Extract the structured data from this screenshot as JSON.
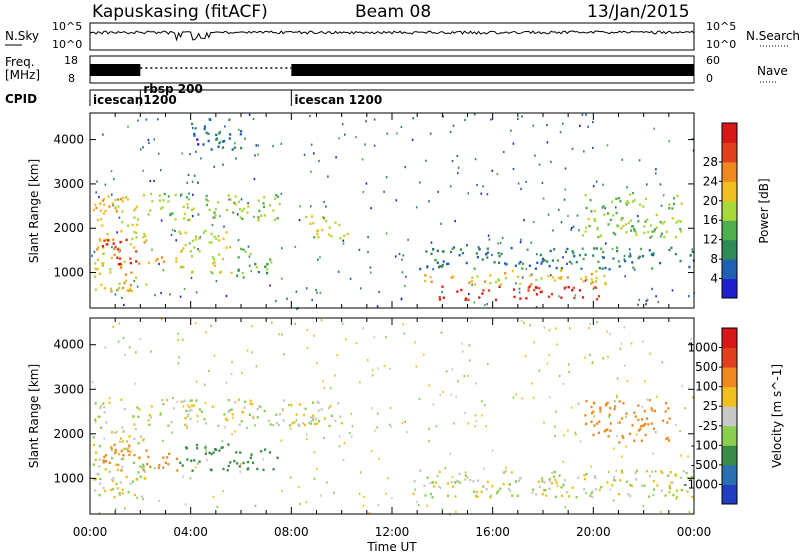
{
  "header": {
    "station": "Kapuskasing (fitACF)",
    "beam": "Beam 08",
    "date": "13/Jan/2015"
  },
  "noise_panel": {
    "left_label": "N.Sky",
    "right_label": "N.Search",
    "ticks": [
      "10^5",
      "10^0"
    ]
  },
  "freq_panel": {
    "left_label_line1": "Freq.",
    "left_label_line2": "[MHz]",
    "left_ticks": [
      "18",
      "8"
    ],
    "right_label": "Nave",
    "right_ticks": [
      "60",
      "0"
    ]
  },
  "cpid_panel": {
    "label": "CPID",
    "modes": [
      {
        "name": "icescan",
        "name2": "",
        "start_hour": 0
      },
      {
        "name": "rbsp 200",
        "name2": "1200",
        "start_hour": 2.0
      },
      {
        "name": "icescan 1200",
        "name2": "",
        "start_hour": 8.0
      }
    ]
  },
  "chart_data": [
    {
      "type": "heatmap",
      "title": "",
      "xlabel": "Time UT",
      "ylabel": "Slant Range [km]",
      "xlim": [
        0,
        24
      ],
      "ylim": [
        200,
        4600
      ],
      "xticks": [
        "00:00",
        "04:00",
        "08:00",
        "12:00",
        "16:00",
        "20:00",
        "00:00"
      ],
      "yticks": [
        1000,
        2000,
        3000,
        4000
      ],
      "colorbar": {
        "label": "Power [dB]",
        "ticks": [
          "4",
          "8",
          "12",
          "16",
          "20",
          "24",
          "28"
        ],
        "colors": [
          "#1f1fd0",
          "#2060b0",
          "#2f8a55",
          "#4fae4f",
          "#a8d83a",
          "#f0c020",
          "#f08a20",
          "#e04020",
          "#d81818"
        ]
      },
      "regions": [
        {
          "t0": 0.1,
          "t1": 2.2,
          "r0": 600,
          "r1": 2800,
          "value": 18
        },
        {
          "t0": 0.4,
          "t1": 1.9,
          "r0": 1200,
          "r1": 1800,
          "value": 26
        },
        {
          "t0": 1.8,
          "t1": 3.5,
          "r0": 1200,
          "r1": 1400,
          "value": 20
        },
        {
          "t0": 2.2,
          "t1": 7.5,
          "r0": 2200,
          "r1": 2800,
          "value": 14
        },
        {
          "t0": 3.5,
          "t1": 5.6,
          "r0": 1000,
          "r1": 2000,
          "value": 16
        },
        {
          "t0": 5.8,
          "t1": 7.2,
          "r0": 900,
          "r1": 1600,
          "value": 12
        },
        {
          "t0": 4.0,
          "t1": 6.0,
          "r0": 3800,
          "r1": 4500,
          "value": 6
        },
        {
          "t0": 8.5,
          "t1": 10.5,
          "r0": 1800,
          "r1": 2300,
          "value": 16
        },
        {
          "t0": 12.8,
          "t1": 20.5,
          "r0": 750,
          "r1": 1100,
          "value": 18
        },
        {
          "t0": 13.8,
          "t1": 18.5,
          "r0": 400,
          "r1": 720,
          "value": 28
        },
        {
          "t0": 18.5,
          "t1": 20.3,
          "r0": 420,
          "r1": 700,
          "value": 26
        },
        {
          "t0": 13.0,
          "t1": 24,
          "r0": 1100,
          "r1": 1600,
          "value": 8
        },
        {
          "t0": 19.5,
          "t1": 23.5,
          "r0": 1800,
          "r1": 2800,
          "value": 14
        }
      ]
    },
    {
      "type": "heatmap",
      "title": "",
      "xlabel": "Time UT",
      "ylabel": "Slant Range [km]",
      "xlim": [
        0,
        24
      ],
      "ylim": [
        200,
        4600
      ],
      "xticks": [
        "00:00",
        "04:00",
        "08:00",
        "12:00",
        "16:00",
        "20:00",
        "00:00"
      ],
      "yticks": [
        1000,
        2000,
        3000,
        4000
      ],
      "colorbar": {
        "label": "Velocity [m s^-1]",
        "ticks": [
          "1000",
          "500",
          "100",
          "25",
          "-25",
          "-100",
          "-500",
          "-1000"
        ],
        "colors": [
          "#1f3fc0",
          "#2a6fb0",
          "#3c8a48",
          "#8ccf50",
          "#c8c8c8",
          "#f0c020",
          "#f08a20",
          "#e04020",
          "#d81818"
        ]
      },
      "regions": [
        {
          "t0": 0.1,
          "t1": 2.2,
          "r0": 600,
          "r1": 2800,
          "value": 0
        },
        {
          "t0": 0.5,
          "t1": 3.5,
          "r0": 1200,
          "r1": 1800,
          "value": -300
        },
        {
          "t0": 2.2,
          "t1": 10.0,
          "r0": 2200,
          "r1": 2800,
          "value": 0
        },
        {
          "t0": 3.5,
          "t1": 7.5,
          "r0": 1200,
          "r1": 1800,
          "value": 300
        },
        {
          "t0": 12.8,
          "t1": 24,
          "r0": 600,
          "r1": 1200,
          "value": 0
        },
        {
          "t0": 19.5,
          "t1": 23.0,
          "r0": 1800,
          "r1": 2800,
          "value": -300
        }
      ]
    }
  ],
  "colors": {
    "axis": "#000000",
    "background": "#ffffff"
  }
}
